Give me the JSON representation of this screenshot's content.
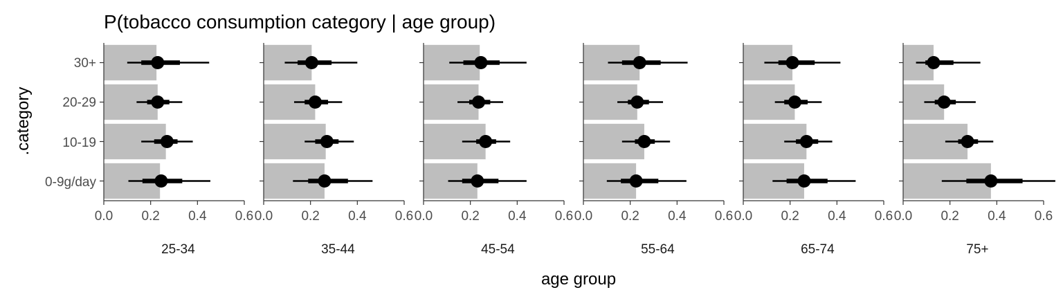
{
  "chart_data": {
    "type": "bar",
    "title": "P(tobacco consumption category | age group)",
    "xlabel": "age group",
    "ylabel": ".category",
    "xlim": [
      0,
      0.6
    ],
    "x_ticks": [
      "0.0",
      "0.2",
      "0.4",
      "0.6"
    ],
    "categories": [
      "0-9g/day",
      "10-19",
      "20-29",
      "30+"
    ],
    "colors": {
      "bar": "#bebebe",
      "point": "#000000",
      "axis": "#333333"
    },
    "panels": [
      {
        "label": "25-34",
        "bars": [
          0.24,
          0.265,
          0.23,
          0.225
        ],
        "points": [
          0.245,
          0.27,
          0.23,
          0.23
        ],
        "inner": [
          [
            0.165,
            0.335
          ],
          [
            0.215,
            0.315
          ],
          [
            0.185,
            0.28
          ],
          [
            0.16,
            0.325
          ]
        ],
        "outer": [
          [
            0.105,
            0.455
          ],
          [
            0.16,
            0.38
          ],
          [
            0.14,
            0.335
          ],
          [
            0.1,
            0.45
          ]
        ]
      },
      {
        "label": "35-44",
        "bars": [
          0.26,
          0.265,
          0.22,
          0.205
        ],
        "points": [
          0.26,
          0.27,
          0.22,
          0.205
        ],
        "inner": [
          [
            0.19,
            0.36
          ],
          [
            0.22,
            0.32
          ],
          [
            0.175,
            0.275
          ],
          [
            0.145,
            0.29
          ]
        ],
        "outer": [
          [
            0.125,
            0.465
          ],
          [
            0.175,
            0.385
          ],
          [
            0.13,
            0.335
          ],
          [
            0.09,
            0.4
          ]
        ]
      },
      {
        "label": "45-54",
        "bars": [
          0.23,
          0.265,
          0.235,
          0.24
        ],
        "points": [
          0.23,
          0.265,
          0.235,
          0.245
        ],
        "inner": [
          [
            0.165,
            0.32
          ],
          [
            0.225,
            0.31
          ],
          [
            0.195,
            0.285
          ],
          [
            0.17,
            0.325
          ]
        ],
        "outer": [
          [
            0.105,
            0.44
          ],
          [
            0.165,
            0.37
          ],
          [
            0.145,
            0.34
          ],
          [
            0.11,
            0.44
          ]
        ]
      },
      {
        "label": "55-64",
        "bars": [
          0.225,
          0.26,
          0.23,
          0.24
        ],
        "points": [
          0.225,
          0.26,
          0.23,
          0.24
        ],
        "inner": [
          [
            0.16,
            0.32
          ],
          [
            0.22,
            0.305
          ],
          [
            0.19,
            0.28
          ],
          [
            0.165,
            0.33
          ]
        ],
        "outer": [
          [
            0.1,
            0.44
          ],
          [
            0.165,
            0.37
          ],
          [
            0.145,
            0.34
          ],
          [
            0.105,
            0.445
          ]
        ]
      },
      {
        "label": "65-74",
        "bars": [
          0.26,
          0.27,
          0.22,
          0.21
        ],
        "points": [
          0.26,
          0.27,
          0.22,
          0.21
        ],
        "inner": [
          [
            0.185,
            0.36
          ],
          [
            0.225,
            0.32
          ],
          [
            0.175,
            0.275
          ],
          [
            0.15,
            0.305
          ]
        ],
        "outer": [
          [
            0.125,
            0.48
          ],
          [
            0.175,
            0.38
          ],
          [
            0.135,
            0.335
          ],
          [
            0.09,
            0.415
          ]
        ]
      },
      {
        "label": "75+",
        "bars": [
          0.375,
          0.275,
          0.175,
          0.13
        ],
        "points": [
          0.375,
          0.275,
          0.175,
          0.13
        ],
        "inner": [
          [
            0.27,
            0.51
          ],
          [
            0.235,
            0.32
          ],
          [
            0.135,
            0.225
          ],
          [
            0.095,
            0.215
          ]
        ],
        "outer": [
          [
            0.165,
            0.65
          ],
          [
            0.18,
            0.385
          ],
          [
            0.09,
            0.31
          ],
          [
            0.055,
            0.33
          ]
        ]
      }
    ]
  }
}
